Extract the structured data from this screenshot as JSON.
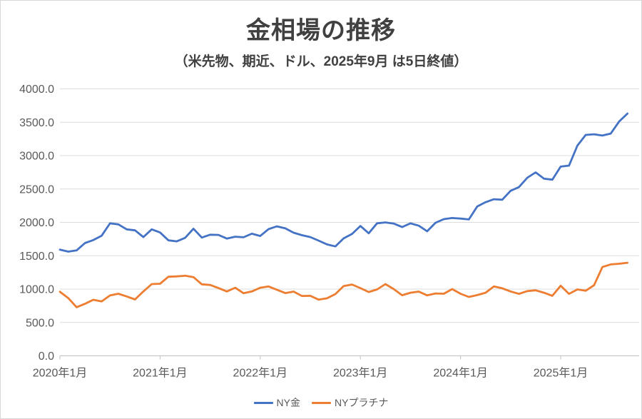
{
  "page": {
    "background": "#ffffff",
    "border_color": "#d7d7d7"
  },
  "header": {
    "title": "金相場の推移",
    "subtitle": "（米先物、期近、ドル、2025年9月 は5日終値）"
  },
  "chart_data": {
    "type": "line",
    "title": "金相場の推移",
    "subtitle": "（米先物、期近、ドル、2025年9月 は5日終値）",
    "x_unit": "month",
    "x_start": "2020年1月",
    "x_end": "2025年9月",
    "n_points": 69,
    "ylim": [
      0,
      4000
    ],
    "grid": true,
    "legend_position": "bottom",
    "colors": {
      "grid": "#dcdcdc",
      "axis": "#bfbfbf",
      "tick_text": "#595959",
      "title_text": "#404040"
    },
    "y_ticks": [
      {
        "value": 0,
        "label": "0.0"
      },
      {
        "value": 500,
        "label": "500.0"
      },
      {
        "value": 1000,
        "label": "1000.0"
      },
      {
        "value": 1500,
        "label": "1500.0"
      },
      {
        "value": 2000,
        "label": "2000.0"
      },
      {
        "value": 2500,
        "label": "2500.0"
      },
      {
        "value": 3000,
        "label": "3000.0"
      },
      {
        "value": 3500,
        "label": "3500.0"
      },
      {
        "value": 4000,
        "label": "4000.0"
      }
    ],
    "x_ticks": [
      {
        "month_index": 0,
        "label": "2020年1月"
      },
      {
        "month_index": 12,
        "label": "2021年1月"
      },
      {
        "month_index": 24,
        "label": "2022年1月"
      },
      {
        "month_index": 36,
        "label": "2023年1月"
      },
      {
        "month_index": 48,
        "label": "2024年1月"
      },
      {
        "month_index": 60,
        "label": "2025年1月"
      }
    ],
    "series": [
      {
        "name": "NY金",
        "color": "#4472C4",
        "values": [
          1590,
          1562,
          1580,
          1690,
          1735,
          1800,
          1985,
          1970,
          1895,
          1880,
          1780,
          1895,
          1848,
          1730,
          1715,
          1768,
          1905,
          1772,
          1815,
          1812,
          1757,
          1785,
          1776,
          1830,
          1796,
          1900,
          1940,
          1910,
          1845,
          1807,
          1780,
          1726,
          1670,
          1640,
          1760,
          1826,
          1945,
          1836,
          1986,
          1999,
          1982,
          1929,
          1985,
          1950,
          1866,
          1994,
          2048,
          2065,
          2057,
          2044,
          2238,
          2302,
          2346,
          2339,
          2473,
          2528,
          2668,
          2749,
          2655,
          2640,
          2835,
          2850,
          3150,
          3310,
          3320,
          3300,
          3330,
          3510,
          3630
        ]
      },
      {
        "name": "NYプラチナ",
        "color": "#ED7D31",
        "values": [
          960,
          865,
          728,
          780,
          840,
          815,
          905,
          930,
          890,
          845,
          965,
          1075,
          1080,
          1185,
          1190,
          1200,
          1180,
          1072,
          1062,
          1015,
          965,
          1020,
          938,
          965,
          1020,
          1040,
          990,
          940,
          963,
          896,
          900,
          842,
          862,
          925,
          1045,
          1068,
          1015,
          956,
          995,
          1075,
          1000,
          908,
          945,
          963,
          906,
          935,
          930,
          1000,
          930,
          882,
          910,
          945,
          1040,
          1012,
          965,
          928,
          970,
          982,
          945,
          900,
          1050,
          928,
          995,
          975,
          1058,
          1330,
          1370,
          1380,
          1395
        ]
      }
    ]
  }
}
